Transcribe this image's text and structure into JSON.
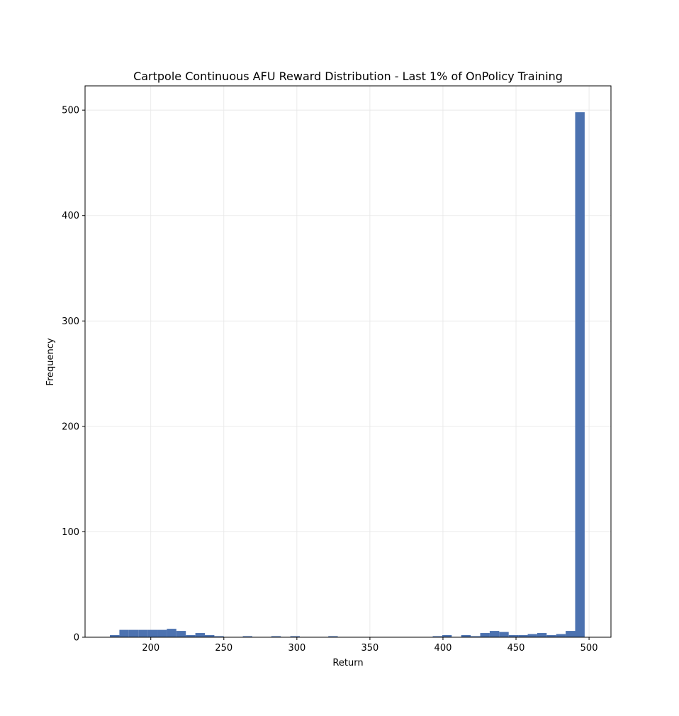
{
  "chart_data": {
    "type": "bar",
    "title": "Cartpole Continuous AFU Reward Distribution - Last 1% of OnPolicy Training",
    "xlabel": "Return",
    "ylabel": "Frequency",
    "xlim": [
      155,
      515
    ],
    "ylim": [
      0,
      523
    ],
    "xticks": [
      200,
      250,
      300,
      350,
      400,
      450,
      500
    ],
    "yticks": [
      0,
      100,
      200,
      300,
      400,
      500
    ],
    "xtick_labels": [
      "200",
      "250",
      "300",
      "350",
      "400",
      "450",
      "500"
    ],
    "ytick_labels": [
      "0",
      "100",
      "200",
      "300",
      "400",
      "500"
    ],
    "grid": true,
    "bar_color": "#4c72b0",
    "bin_width": 6.5,
    "bins": [
      {
        "x0": 172.0,
        "count": 2
      },
      {
        "x0": 178.5,
        "count": 7
      },
      {
        "x0": 185.0,
        "count": 7
      },
      {
        "x0": 191.5,
        "count": 7
      },
      {
        "x0": 198.0,
        "count": 7
      },
      {
        "x0": 204.5,
        "count": 7
      },
      {
        "x0": 211.0,
        "count": 8
      },
      {
        "x0": 217.5,
        "count": 6
      },
      {
        "x0": 224.0,
        "count": 2
      },
      {
        "x0": 230.5,
        "count": 4
      },
      {
        "x0": 237.0,
        "count": 2
      },
      {
        "x0": 243.5,
        "count": 1
      },
      {
        "x0": 263.0,
        "count": 1
      },
      {
        "x0": 282.5,
        "count": 1
      },
      {
        "x0": 295.5,
        "count": 1
      },
      {
        "x0": 321.5,
        "count": 1
      },
      {
        "x0": 393.0,
        "count": 1
      },
      {
        "x0": 399.5,
        "count": 2
      },
      {
        "x0": 412.5,
        "count": 2
      },
      {
        "x0": 419.0,
        "count": 1
      },
      {
        "x0": 425.5,
        "count": 4
      },
      {
        "x0": 432.0,
        "count": 6
      },
      {
        "x0": 438.5,
        "count": 5
      },
      {
        "x0": 445.0,
        "count": 2
      },
      {
        "x0": 451.5,
        "count": 2
      },
      {
        "x0": 458.0,
        "count": 3
      },
      {
        "x0": 464.5,
        "count": 4
      },
      {
        "x0": 471.0,
        "count": 2
      },
      {
        "x0": 477.5,
        "count": 3
      },
      {
        "x0": 484.0,
        "count": 6
      },
      {
        "x0": 490.5,
        "count": 498
      }
    ]
  }
}
